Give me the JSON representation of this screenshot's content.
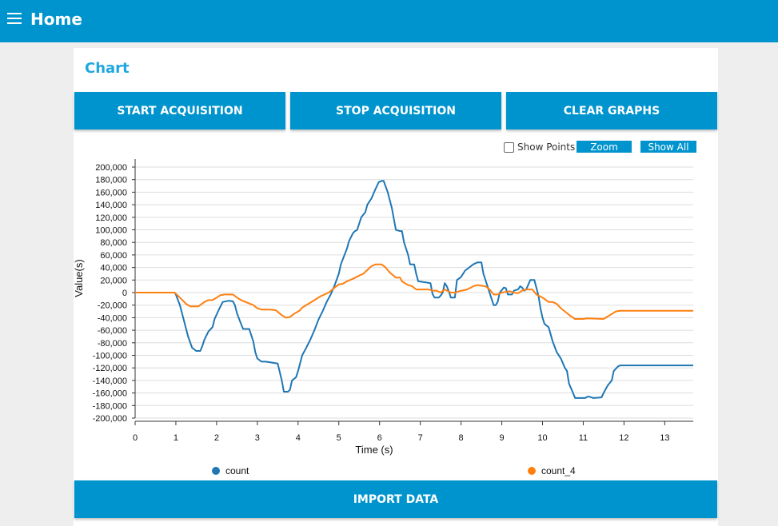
{
  "header": {
    "title": "Home",
    "menu_icon": "hamburger-menu-icon"
  },
  "card": {
    "title": "Chart"
  },
  "buttons": {
    "start": "START ACQUISITION",
    "stop": "STOP ACQUISITION",
    "clear": "CLEAR GRAPHS",
    "import": "IMPORT DATA"
  },
  "chart_controls": {
    "show_points_label": "Show Points",
    "show_points_checked": false,
    "zoom_label": "Zoom",
    "show_all_label": "Show All"
  },
  "colors": {
    "accent": "#0094ce",
    "title": "#1fa7e0",
    "series_count": "#1f77b4",
    "series_count_4": "#ff7f0e"
  },
  "chart_data": {
    "type": "line",
    "xlabel": "Time (s)",
    "ylabel": "Value(s)",
    "xlim": [
      0,
      13.7
    ],
    "ylim": [
      -200000,
      200000
    ],
    "xticks": [
      0,
      1,
      2,
      3,
      4,
      5,
      6,
      7,
      8,
      9,
      10,
      11,
      12,
      13
    ],
    "yticks": [
      200000,
      180000,
      160000,
      140000,
      120000,
      100000,
      80000,
      60000,
      40000,
      20000,
      0,
      -20000,
      -40000,
      -60000,
      -80000,
      -100000,
      -120000,
      -140000,
      -160000,
      -180000,
      -200000
    ],
    "ytick_labels": [
      "200,000",
      "180,000",
      "160,000",
      "140,000",
      "120,000",
      "100,000",
      "80,000",
      "60,000",
      "40,000",
      "20,000",
      "0",
      "-20,000",
      "-40,000",
      "-60,000",
      "-80,000",
      "-100,000",
      "-120,000",
      "-140,000",
      "-160,000",
      "-180,000",
      "-200,000"
    ],
    "grid": true,
    "legend_position": "bottom",
    "series": [
      {
        "name": "count",
        "color": "#1f77b4",
        "points": [
          [
            0,
            0
          ],
          [
            0.97,
            0
          ],
          [
            1.0,
            -3000
          ],
          [
            1.1,
            -20000
          ],
          [
            1.2,
            -45000
          ],
          [
            1.3,
            -70000
          ],
          [
            1.4,
            -88000
          ],
          [
            1.5,
            -93000
          ],
          [
            1.6,
            -93000
          ],
          [
            1.65,
            -85000
          ],
          [
            1.7,
            -75000
          ],
          [
            1.8,
            -62000
          ],
          [
            1.9,
            -55000
          ],
          [
            1.95,
            -42000
          ],
          [
            2.05,
            -28000
          ],
          [
            2.15,
            -15000
          ],
          [
            2.3,
            -13000
          ],
          [
            2.4,
            -14000
          ],
          [
            2.45,
            -20000
          ],
          [
            2.5,
            -33000
          ],
          [
            2.6,
            -50000
          ],
          [
            2.65,
            -58000
          ],
          [
            2.8,
            -58000
          ],
          [
            2.9,
            -78000
          ],
          [
            2.95,
            -95000
          ],
          [
            3.0,
            -105000
          ],
          [
            3.1,
            -110000
          ],
          [
            3.2,
            -110000
          ],
          [
            3.3,
            -111000
          ],
          [
            3.5,
            -113000
          ],
          [
            3.6,
            -140000
          ],
          [
            3.65,
            -158000
          ],
          [
            3.75,
            -158000
          ],
          [
            3.8,
            -155000
          ],
          [
            3.85,
            -140000
          ],
          [
            3.95,
            -135000
          ],
          [
            4.0,
            -125000
          ],
          [
            4.1,
            -100000
          ],
          [
            4.2,
            -88000
          ],
          [
            4.3,
            -75000
          ],
          [
            4.4,
            -60000
          ],
          [
            4.5,
            -43000
          ],
          [
            4.6,
            -30000
          ],
          [
            4.7,
            -15000
          ],
          [
            4.8,
            -3000
          ],
          [
            4.9,
            12000
          ],
          [
            5.0,
            30000
          ],
          [
            5.05,
            45000
          ],
          [
            5.2,
            70000
          ],
          [
            5.25,
            82000
          ],
          [
            5.35,
            95000
          ],
          [
            5.4,
            98000
          ],
          [
            5.45,
            100000
          ],
          [
            5.55,
            120000
          ],
          [
            5.65,
            128000
          ],
          [
            5.7,
            140000
          ],
          [
            5.8,
            150000
          ],
          [
            5.9,
            165000
          ],
          [
            5.98,
            176000
          ],
          [
            6.05,
            178000
          ],
          [
            6.1,
            178000
          ],
          [
            6.2,
            160000
          ],
          [
            6.3,
            135000
          ],
          [
            6.4,
            100000
          ],
          [
            6.5,
            98000
          ],
          [
            6.55,
            98000
          ],
          [
            6.6,
            80000
          ],
          [
            6.7,
            60000
          ],
          [
            6.75,
            45000
          ],
          [
            6.85,
            45000
          ],
          [
            6.9,
            30000
          ],
          [
            6.95,
            18000
          ],
          [
            7.15,
            16000
          ],
          [
            7.25,
            15000
          ],
          [
            7.3,
            -2000
          ],
          [
            7.35,
            -8000
          ],
          [
            7.45,
            -8000
          ],
          [
            7.5,
            -5000
          ],
          [
            7.55,
            0
          ],
          [
            7.6,
            15000
          ],
          [
            7.65,
            10000
          ],
          [
            7.7,
            2000
          ],
          [
            7.75,
            -8000
          ],
          [
            7.85,
            -8000
          ],
          [
            7.9,
            20000
          ],
          [
            8.0,
            25000
          ],
          [
            8.1,
            35000
          ],
          [
            8.3,
            45000
          ],
          [
            8.4,
            48000
          ],
          [
            8.5,
            48000
          ],
          [
            8.55,
            30000
          ],
          [
            8.65,
            10000
          ],
          [
            8.75,
            -10000
          ],
          [
            8.8,
            -20000
          ],
          [
            8.85,
            -20000
          ],
          [
            8.9,
            -15000
          ],
          [
            8.95,
            0
          ],
          [
            9.05,
            8000
          ],
          [
            9.1,
            7000
          ],
          [
            9.15,
            -3000
          ],
          [
            9.25,
            -3000
          ],
          [
            9.3,
            3000
          ],
          [
            9.4,
            5000
          ],
          [
            9.45,
            10000
          ],
          [
            9.5,
            8000
          ],
          [
            9.55,
            3000
          ],
          [
            9.6,
            5000
          ],
          [
            9.7,
            20000
          ],
          [
            9.8,
            20000
          ],
          [
            9.9,
            -5000
          ],
          [
            9.95,
            -25000
          ],
          [
            10.0,
            -40000
          ],
          [
            10.05,
            -50000
          ],
          [
            10.15,
            -55000
          ],
          [
            10.25,
            -78000
          ],
          [
            10.35,
            -95000
          ],
          [
            10.45,
            -105000
          ],
          [
            10.55,
            -120000
          ],
          [
            10.6,
            -125000
          ],
          [
            10.65,
            -145000
          ],
          [
            10.75,
            -160000
          ],
          [
            10.8,
            -168000
          ],
          [
            10.95,
            -168000
          ],
          [
            11.05,
            -168000
          ],
          [
            11.1,
            -166000
          ],
          [
            11.15,
            -166000
          ],
          [
            11.25,
            -168000
          ],
          [
            11.45,
            -167000
          ],
          [
            11.5,
            -160000
          ],
          [
            11.6,
            -148000
          ],
          [
            11.7,
            -140000
          ],
          [
            11.75,
            -125000
          ],
          [
            11.85,
            -118000
          ],
          [
            11.9,
            -116000
          ],
          [
            12.5,
            -116000
          ],
          [
            13.7,
            -116000
          ]
        ]
      },
      {
        "name": "count_4",
        "color": "#ff7f0e",
        "points": [
          [
            0,
            0
          ],
          [
            0.97,
            0
          ],
          [
            1.1,
            -8000
          ],
          [
            1.25,
            -18000
          ],
          [
            1.35,
            -22000
          ],
          [
            1.55,
            -22000
          ],
          [
            1.7,
            -15000
          ],
          [
            1.8,
            -12000
          ],
          [
            1.9,
            -12000
          ],
          [
            2.0,
            -8000
          ],
          [
            2.1,
            -4000
          ],
          [
            2.2,
            -3000
          ],
          [
            2.4,
            -3000
          ],
          [
            2.5,
            -8000
          ],
          [
            2.6,
            -12000
          ],
          [
            2.75,
            -16000
          ],
          [
            2.9,
            -20000
          ],
          [
            3.0,
            -25000
          ],
          [
            3.1,
            -27000
          ],
          [
            3.3,
            -27000
          ],
          [
            3.45,
            -28000
          ],
          [
            3.6,
            -36000
          ],
          [
            3.7,
            -40000
          ],
          [
            3.8,
            -39000
          ],
          [
            3.9,
            -34000
          ],
          [
            4.0,
            -30000
          ],
          [
            4.05,
            -28000
          ],
          [
            4.1,
            -24000
          ],
          [
            4.3,
            -16000
          ],
          [
            4.45,
            -10000
          ],
          [
            4.55,
            -6000
          ],
          [
            4.65,
            -3000
          ],
          [
            4.75,
            0
          ],
          [
            4.9,
            8000
          ],
          [
            5.0,
            13000
          ],
          [
            5.1,
            14000
          ],
          [
            5.2,
            18000
          ],
          [
            5.35,
            22000
          ],
          [
            5.5,
            27000
          ],
          [
            5.6,
            30000
          ],
          [
            5.8,
            42000
          ],
          [
            5.9,
            45000
          ],
          [
            6.05,
            45000
          ],
          [
            6.15,
            40000
          ],
          [
            6.25,
            32000
          ],
          [
            6.4,
            24000
          ],
          [
            6.5,
            24000
          ],
          [
            6.55,
            18000
          ],
          [
            6.7,
            12000
          ],
          [
            6.8,
            10000
          ],
          [
            6.9,
            5000
          ],
          [
            7.2,
            5000
          ],
          [
            7.3,
            3000
          ],
          [
            7.4,
            3000
          ],
          [
            7.5,
            0
          ],
          [
            7.6,
            5000
          ],
          [
            7.75,
            0
          ],
          [
            7.85,
            0
          ],
          [
            7.95,
            2000
          ],
          [
            8.15,
            5000
          ],
          [
            8.3,
            10000
          ],
          [
            8.4,
            12000
          ],
          [
            8.6,
            10000
          ],
          [
            8.7,
            5000
          ],
          [
            8.8,
            -3000
          ],
          [
            8.9,
            -3000
          ],
          [
            9.0,
            0
          ],
          [
            9.2,
            2000
          ],
          [
            9.3,
            0
          ],
          [
            9.4,
            -1000
          ],
          [
            9.5,
            3000
          ],
          [
            9.6,
            5000
          ],
          [
            9.75,
            5000
          ],
          [
            9.85,
            -3000
          ],
          [
            10.0,
            -8000
          ],
          [
            10.05,
            -10000
          ],
          [
            10.15,
            -15000
          ],
          [
            10.25,
            -15000
          ],
          [
            10.35,
            -18000
          ],
          [
            10.45,
            -25000
          ],
          [
            10.55,
            -30000
          ],
          [
            10.7,
            -38000
          ],
          [
            10.8,
            -42000
          ],
          [
            11.0,
            -42000
          ],
          [
            11.1,
            -41000
          ],
          [
            11.5,
            -42000
          ],
          [
            11.65,
            -36000
          ],
          [
            11.8,
            -30000
          ],
          [
            11.9,
            -29000
          ],
          [
            12.5,
            -29000
          ],
          [
            13.7,
            -29000
          ]
        ]
      }
    ]
  }
}
